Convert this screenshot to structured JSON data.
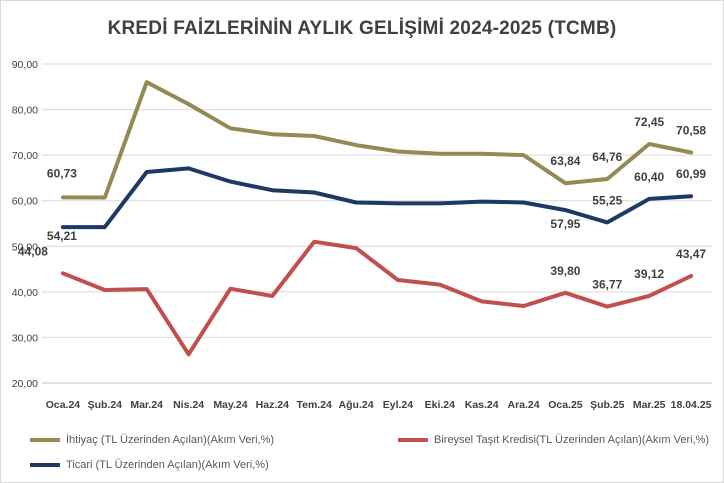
{
  "chart_data": {
    "type": "line",
    "title": "KREDİ FAİZLERİNİN AYLIK GELİŞİMİ 2024-2025 (TCMB)",
    "categories": [
      "Oca.24",
      "Şub.24",
      "Mar.24",
      "Nis.24",
      "May.24",
      "Haz.24",
      "Tem.24",
      "Ağu.24",
      "Eyl.24",
      "Eki.24",
      "Kas.24",
      "Ara.24",
      "Oca.25",
      "Şub.25",
      "Mar.25",
      "18.04.25"
    ],
    "ylim": [
      20,
      90
    ],
    "yticks": [
      "20,00",
      "30,00",
      "40,00",
      "50,00",
      "60,00",
      "70,00",
      "80,00",
      "90,00"
    ],
    "grid": true,
    "legend_position": "bottom",
    "series": [
      {
        "name": "İhtiyaç (TL Üzerinden Açılan)(Akım Veri,%)",
        "color": "#948A54",
        "values": [
          60.73,
          60.7,
          86.0,
          81.2,
          75.9,
          74.6,
          74.2,
          72.2,
          70.8,
          70.3,
          70.3,
          70.0,
          63.84,
          64.76,
          72.45,
          70.58
        ],
        "labels": [
          {
            "i": 0,
            "text": "60,73"
          },
          {
            "i": 12,
            "text": "63,84"
          },
          {
            "i": 13,
            "text": "64,76"
          },
          {
            "i": 14,
            "text": "72,45"
          },
          {
            "i": 15,
            "text": "70,58"
          }
        ]
      },
      {
        "name": "Ticari (TL Üzerinden Açılan)(Akım Veri,%)",
        "color": "#1F3864",
        "values": [
          54.21,
          54.2,
          66.3,
          67.1,
          64.2,
          62.3,
          61.8,
          59.6,
          59.4,
          59.4,
          59.8,
          59.6,
          57.95,
          55.25,
          60.4,
          60.99
        ],
        "labels": [
          {
            "i": 0,
            "text": "54,21"
          },
          {
            "i": 12,
            "text": "57,95"
          },
          {
            "i": 13,
            "text": "55,25"
          },
          {
            "i": 14,
            "text": "60,40"
          },
          {
            "i": 15,
            "text": "60,99"
          }
        ]
      },
      {
        "name": "Bireysel Taşıt Kredisi(TL Üzerinden Açılan)(Akım Veri,%)",
        "color": "#C0504D",
        "values": [
          44.08,
          40.4,
          40.6,
          26.3,
          40.7,
          39.1,
          51.0,
          49.6,
          42.6,
          41.6,
          37.9,
          36.9,
          39.8,
          36.77,
          39.12,
          43.47
        ],
        "labels": [
          {
            "i": 0,
            "text": "44,08"
          },
          {
            "i": 12,
            "text": "39,80"
          },
          {
            "i": 13,
            "text": "36,77"
          },
          {
            "i": 14,
            "text": "39,12"
          },
          {
            "i": 15,
            "text": "43,47"
          }
        ]
      }
    ]
  }
}
